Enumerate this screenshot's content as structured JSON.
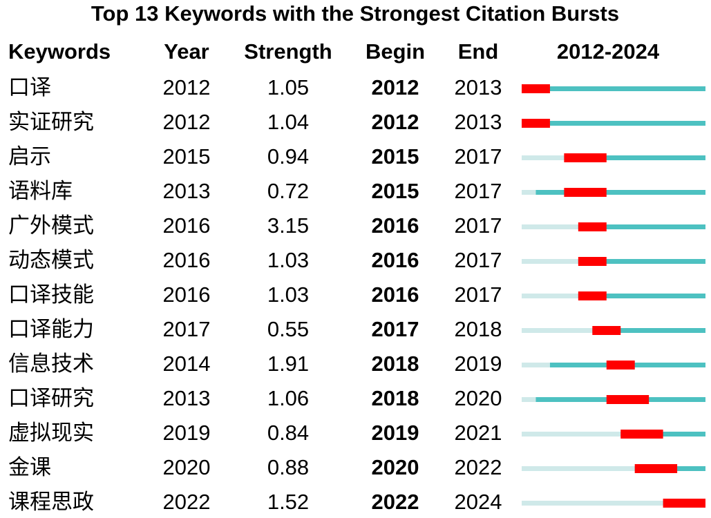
{
  "title": "Top 13 Keywords with the Strongest Citation Bursts",
  "table": {
    "header": [
      "Keywords",
      "Year",
      "Strength",
      "Begin",
      "End",
      "2012-2024"
    ],
    "timeline": {
      "start": 2012,
      "end": 2024
    },
    "rows": [
      [
        "口译",
        2012,
        1.05,
        2012,
        2013
      ],
      [
        "实证研究",
        2012,
        1.04,
        2012,
        2013
      ],
      [
        "启示",
        2015,
        0.94,
        2015,
        2017
      ],
      [
        "语料库",
        2013,
        0.72,
        2015,
        2017
      ],
      [
        "广外模式",
        2016,
        3.15,
        2016,
        2017
      ],
      [
        "动态模式",
        2016,
        1.03,
        2016,
        2017
      ],
      [
        "口译技能",
        2016,
        1.03,
        2016,
        2017
      ],
      [
        "口译能力",
        2017,
        0.55,
        2017,
        2018
      ],
      [
        "信息技术",
        2014,
        1.91,
        2018,
        2019
      ],
      [
        "口译研究",
        2013,
        1.06,
        2018,
        2020
      ],
      [
        "虚拟现实",
        2019,
        0.84,
        2019,
        2021
      ],
      [
        "金课",
        2020,
        0.88,
        2020,
        2022
      ],
      [
        "课程思政",
        2022,
        1.52,
        2022,
        2024
      ]
    ]
  }
}
